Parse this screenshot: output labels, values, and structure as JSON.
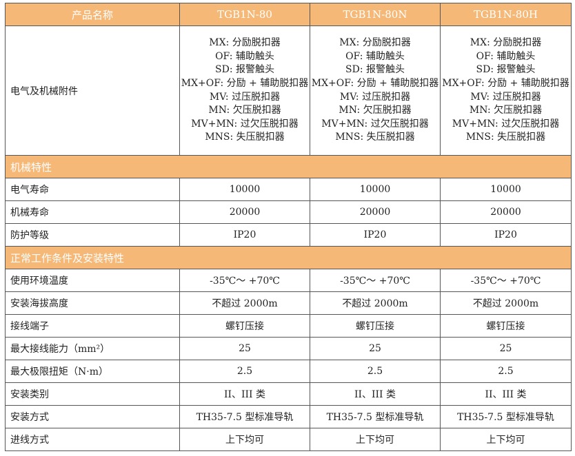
{
  "header": {
    "label": "产品名称",
    "models": [
      "TGB1N-80",
      "TGB1N-80N",
      "TGB1N-80H"
    ]
  },
  "accessories": {
    "label": "电气及机械附件",
    "items": [
      "MX: 分励脱扣器",
      "OF: 辅助触头",
      "SD: 报警触头",
      "MX+OF: 分励 + 辅助脱扣器",
      "MV: 过压脱扣器",
      "MN: 欠压脱扣器",
      "MV+MN: 过欠压脱扣器",
      "MNS: 失压脱扣器"
    ]
  },
  "sections": [
    {
      "title": "机械特性",
      "rows": [
        {
          "label": "电气寿命",
          "values": [
            "10000",
            "10000",
            "10000"
          ]
        },
        {
          "label": "机械寿命",
          "values": [
            "20000",
            "20000",
            "20000"
          ]
        },
        {
          "label": "防护等级",
          "values": [
            "IP20",
            "IP20",
            "IP20"
          ]
        }
      ]
    },
    {
      "title": "正常工作条件及安装特性",
      "rows": [
        {
          "label": "使用环境温度",
          "values": [
            "-35℃～ +70℃",
            "-35℃～ +70℃",
            "-35℃～ +70℃"
          ]
        },
        {
          "label": "安装海拔高度",
          "values": [
            "不超过 2000m",
            "不超过 2000m",
            "不超过 2000m"
          ]
        },
        {
          "label": "接线端子",
          "values": [
            "螺钉压接",
            "螺钉压接",
            "螺钉压接"
          ]
        },
        {
          "label": "最大接线能力（mm²）",
          "values": [
            "25",
            "25",
            "25"
          ]
        },
        {
          "label": "最大极限扭矩（N·m）",
          "values": [
            "2.5",
            "2.5",
            "2.5"
          ]
        },
        {
          "label": "安装类别",
          "values": [
            "II、III 类",
            "II、III 类",
            "II、III 类"
          ]
        },
        {
          "label": "安装方式",
          "values": [
            "TH35-7.5 型标准导轨",
            "TH35-7.5 型标准导轨",
            "TH35-7.5 型标准导轨"
          ]
        },
        {
          "label": "进线方式",
          "values": [
            "上下均可",
            "上下均可",
            "上下均可"
          ]
        }
      ]
    }
  ],
  "colors": {
    "header_bg": "#F5B877",
    "border": "#555555"
  }
}
